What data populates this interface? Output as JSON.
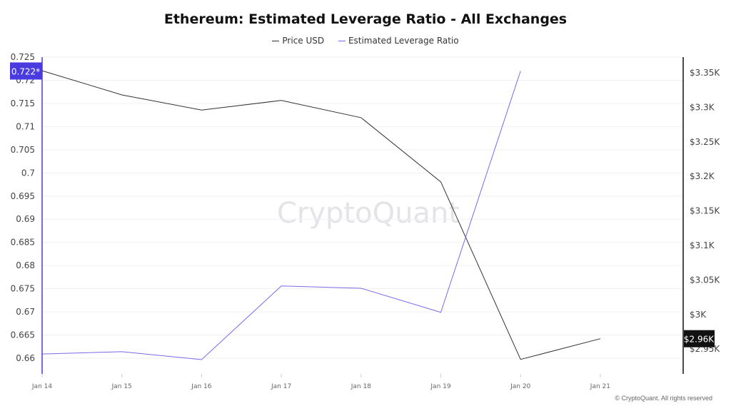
{
  "chart_data": {
    "type": "line",
    "title": "Ethereum: Estimated Leverage Ratio - All Exchanges",
    "categories": [
      "Jan 14",
      "Jan 15",
      "Jan 16",
      "Jan 17",
      "Jan 18",
      "Jan 19",
      "Jan 20",
      "Jan 21"
    ],
    "series": [
      {
        "name": "Price USD",
        "axis": "right",
        "color": "#333333",
        "values": [
          3353,
          3318,
          3296,
          3310,
          3285,
          3192,
          2935,
          2965
        ]
      },
      {
        "name": "Estimated Leverage Ratio",
        "axis": "left",
        "color": "#7b68ee",
        "values": [
          0.6609,
          0.6614,
          0.6597,
          0.6756,
          0.6751,
          0.6699,
          0.722,
          null
        ]
      }
    ],
    "left_axis": {
      "ticks": [
        "0.66",
        "0.665",
        "0.67",
        "0.675",
        "0.68",
        "0.685",
        "0.69",
        "0.695",
        "0.7",
        "0.705",
        "0.71",
        "0.715",
        "0.72",
        "0.725"
      ],
      "range": [
        0.658,
        0.725
      ]
    },
    "right_axis": {
      "ticks": [
        "$2.95K",
        "$3K",
        "$3.05K",
        "$3.1K",
        "$3.15K",
        "$3.2K",
        "$3.25K",
        "$3.3K",
        "$3.35K"
      ],
      "range": [
        2930,
        3370
      ]
    },
    "left_marker": "0.722*",
    "right_marker": "$2.96K",
    "grid": true,
    "legend_position": "top"
  },
  "watermark": "CryptoQuant",
  "footer": "© CryptoQuant. All rights reserved"
}
